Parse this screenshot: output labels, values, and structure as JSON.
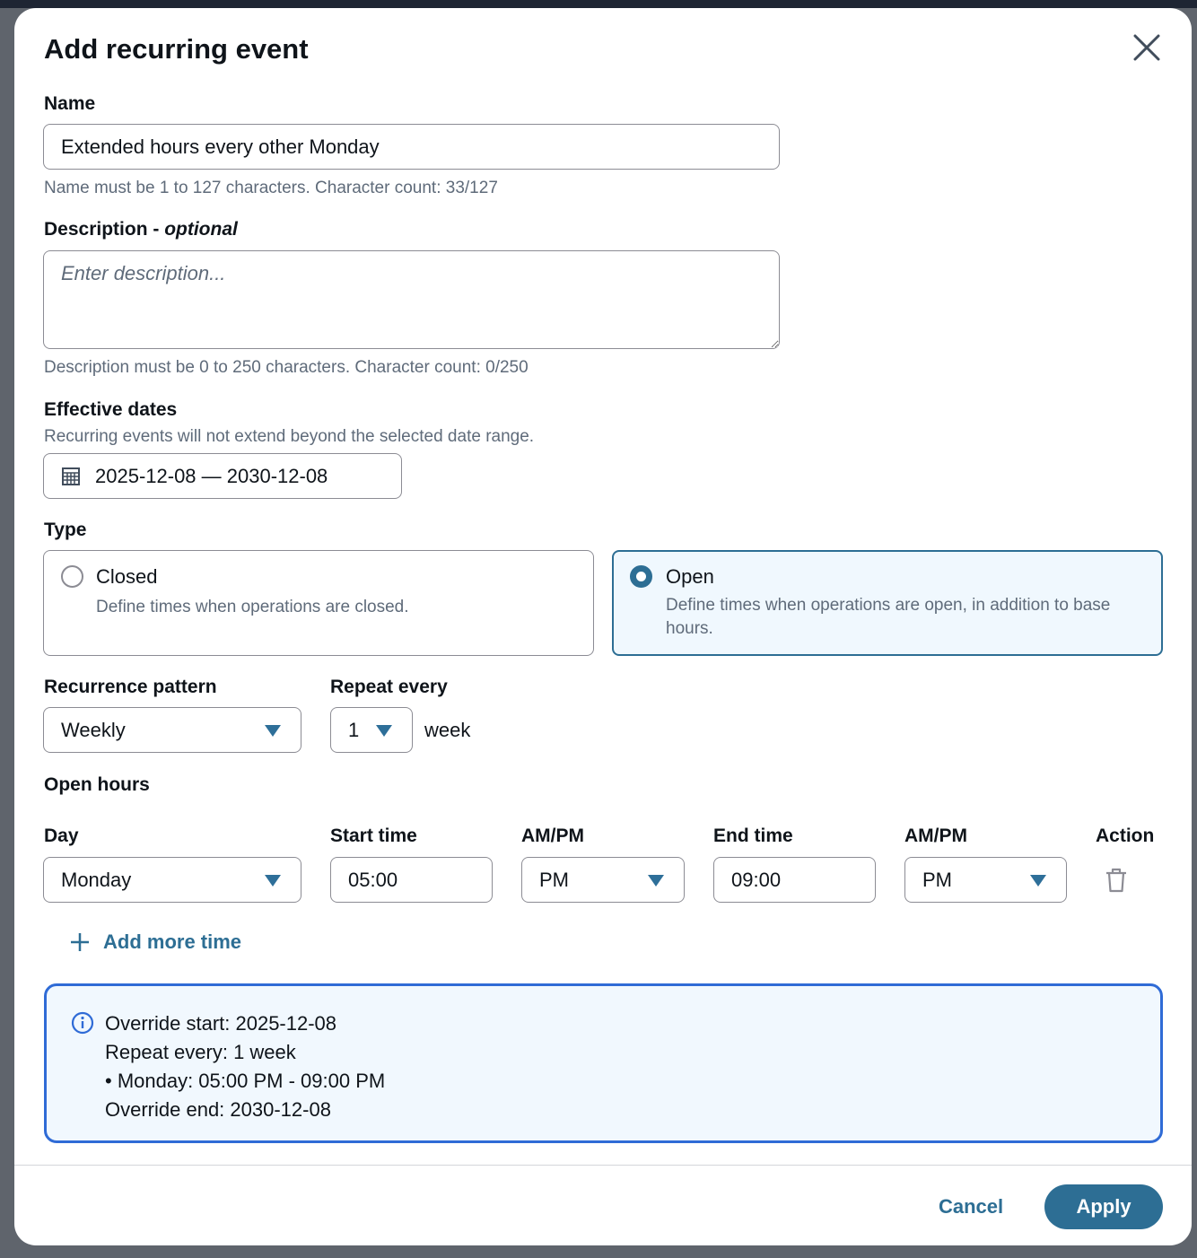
{
  "modal": {
    "title": "Add recurring event",
    "close_icon": "close-icon"
  },
  "name": {
    "label": "Name",
    "value": "Extended hours every other Monday",
    "hint": "Name must be 1 to 127 characters. Character count: 33/127"
  },
  "description": {
    "label": "Description - ",
    "label_optional": "optional",
    "placeholder": "Enter description...",
    "hint": "Description must be 0 to 250 characters. Character count: 0/250"
  },
  "effective_dates": {
    "label": "Effective dates",
    "hint": "Recurring events will not extend beyond the selected date range.",
    "value": "2025-12-08 — 2030-12-08",
    "icon": "calendar-icon"
  },
  "type": {
    "label": "Type",
    "options": [
      {
        "title": "Closed",
        "description": "Define times when operations are closed.",
        "selected": false
      },
      {
        "title": "Open",
        "description": "Define times when operations are open, in addition to base hours.",
        "selected": true
      }
    ]
  },
  "recurrence": {
    "pattern_label": "Recurrence pattern",
    "pattern_value": "Weekly",
    "repeat_label": "Repeat every",
    "repeat_value": "1",
    "repeat_unit": "week"
  },
  "open_hours": {
    "label": "Open hours",
    "columns": [
      "Day",
      "Start time",
      "AM/PM",
      "End time",
      "AM/PM",
      "Action"
    ],
    "rows": [
      {
        "day": "Monday",
        "start": "05:00",
        "start_ampm": "PM",
        "end": "09:00",
        "end_ampm": "PM"
      }
    ],
    "add_label": "Add more time"
  },
  "summary": {
    "lines": [
      "Override start: 2025-12-08",
      "Repeat every: 1 week",
      "• Monday: 05:00 PM - 09:00 PM",
      "Override end: 2030-12-08"
    ]
  },
  "footer": {
    "cancel": "Cancel",
    "apply": "Apply"
  },
  "colors": {
    "primary": "#2d6e94",
    "info_border": "#2f6bd6",
    "info_bg": "#f1f8fe"
  }
}
